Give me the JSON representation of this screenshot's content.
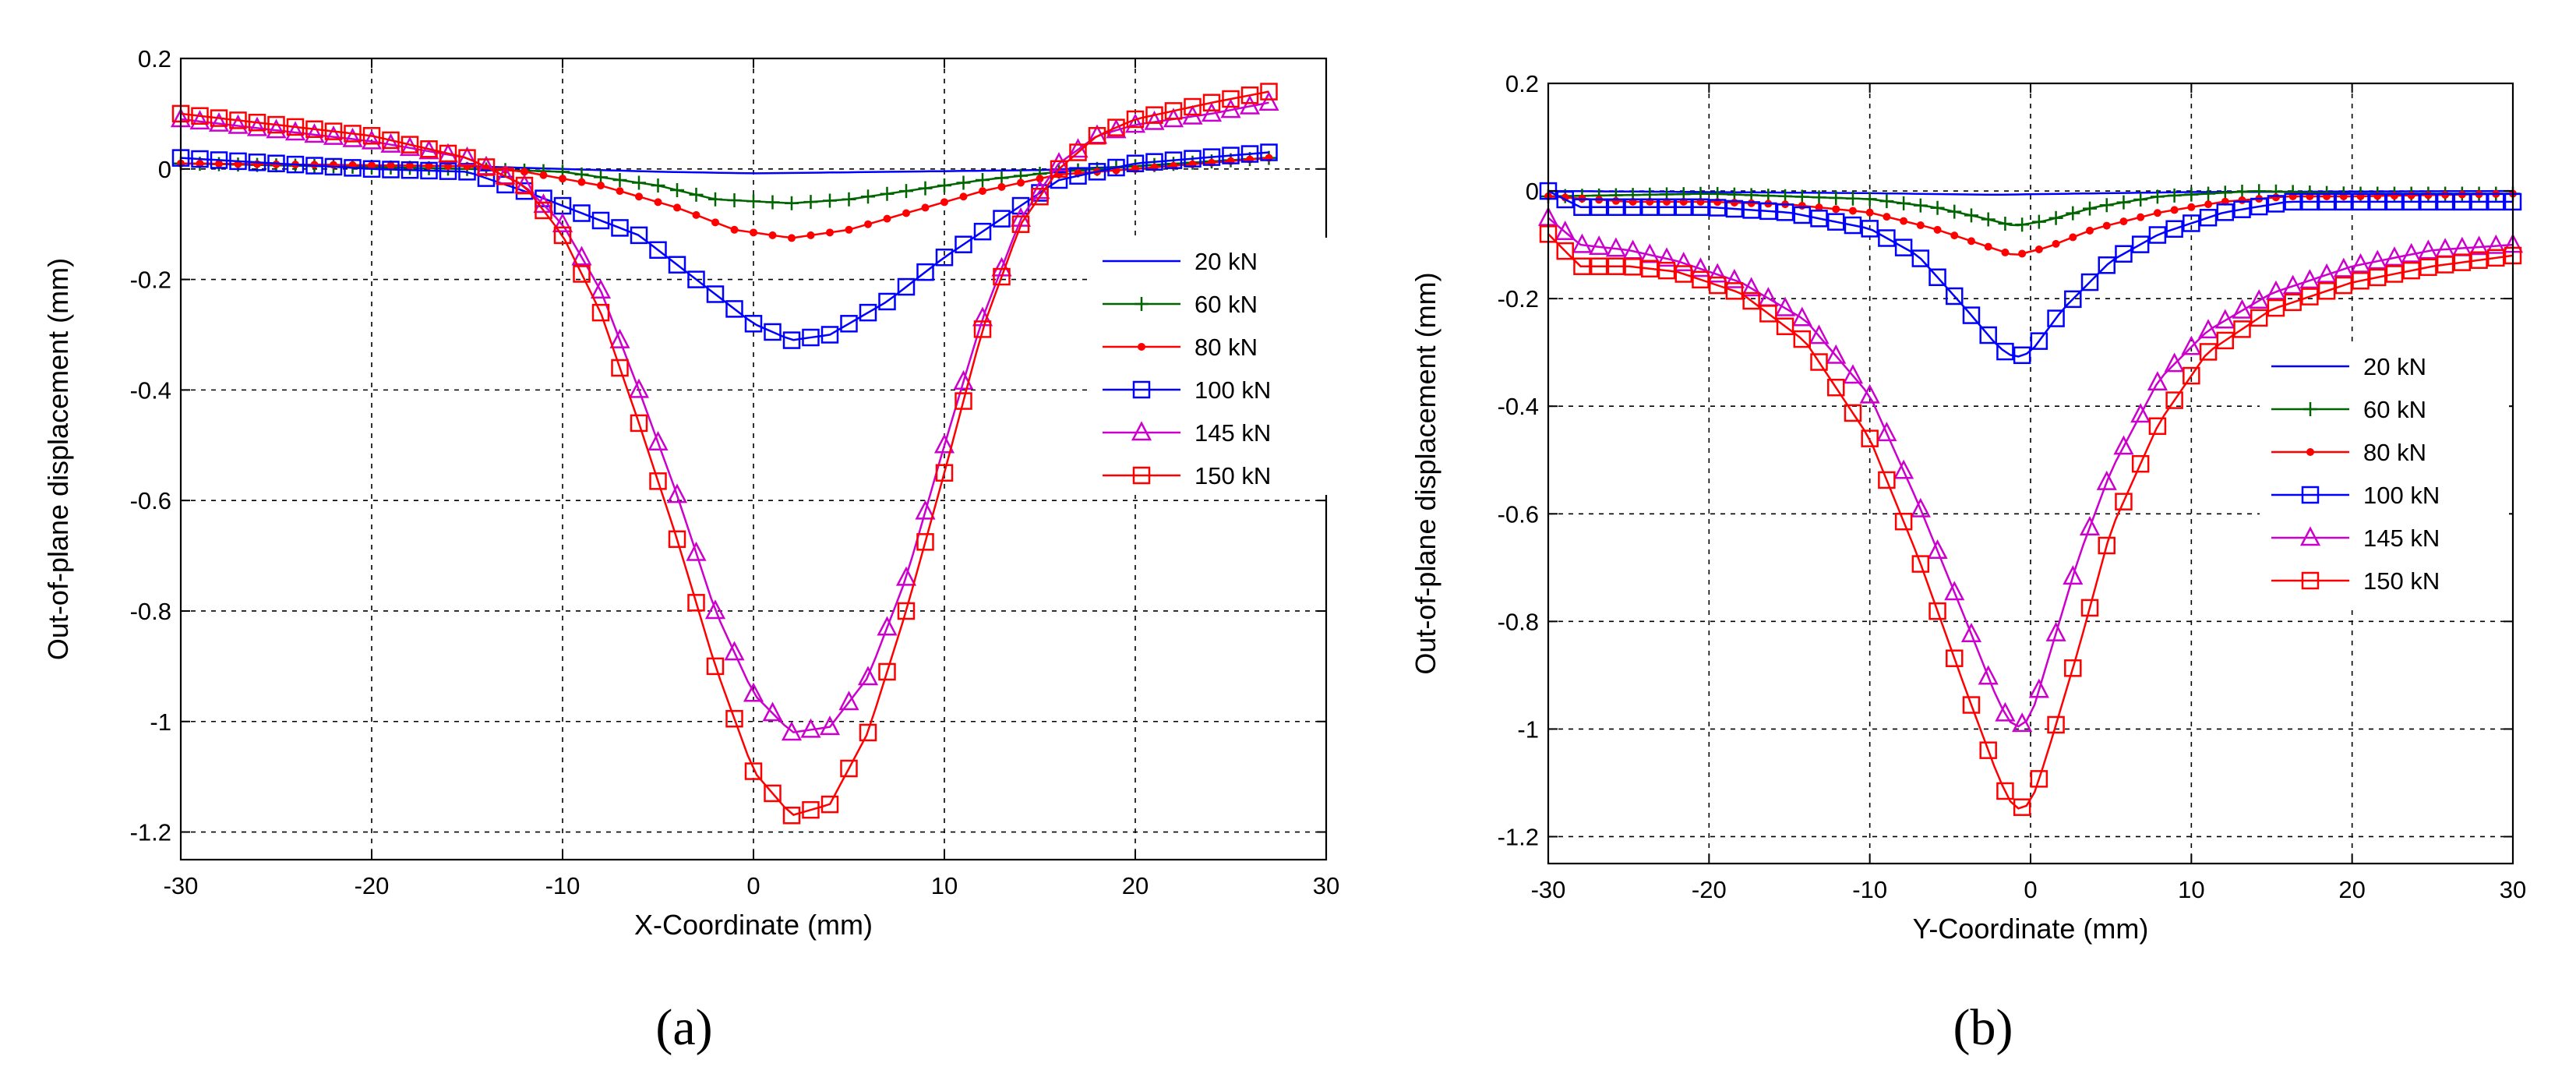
{
  "figure": {
    "panels": [
      "(a)",
      "(b)"
    ]
  },
  "chart_data": [
    {
      "type": "line",
      "panel_label": "(a)",
      "title": "",
      "xlabel": "X-Coordinate (mm)",
      "ylabel": "Out-of-plane displacement (mm)",
      "xlim": [
        -30,
        30
      ],
      "ylim": [
        -1.25,
        0.2
      ],
      "xticks": [
        -30,
        -20,
        -10,
        0,
        10,
        20,
        30
      ],
      "xtick_labels": [
        "-30",
        "-20",
        "-10",
        "0",
        "10",
        "20",
        "30"
      ],
      "yticks": [
        0.2,
        0,
        -0.2,
        -0.4,
        -0.6,
        -0.8,
        -1,
        -1.2
      ],
      "ytick_labels": [
        "0.2",
        "0",
        "-0.2",
        "-0.4",
        "-0.6",
        "-0.8",
        "-1",
        "-1.2"
      ],
      "grid": true,
      "legend_position": "right",
      "x_range": [
        -30,
        27
      ],
      "series": [
        {
          "name": "20 kN",
          "color": "#0000ff",
          "marker": "none",
          "x": [
            -30,
            -15,
            -10,
            -5,
            0,
            5,
            10,
            15,
            20,
            27
          ],
          "y": [
            0.01,
            0.005,
            0.0,
            -0.005,
            -0.008,
            -0.006,
            -0.004,
            -0.002,
            0.005,
            0.02
          ]
        },
        {
          "name": "60 kN",
          "color": "#006400",
          "marker": "plus",
          "x": [
            -30,
            -15,
            -10,
            -5,
            -2,
            2,
            5,
            8,
            12,
            16,
            20,
            27
          ],
          "y": [
            0.01,
            0.0,
            -0.005,
            -0.03,
            -0.055,
            -0.062,
            -0.055,
            -0.04,
            -0.02,
            -0.005,
            0.005,
            0.02
          ]
        },
        {
          "name": "80 kN",
          "color": "#ff0000",
          "marker": "star",
          "x": [
            -30,
            -15,
            -12,
            -8,
            -4,
            -1,
            2,
            5,
            8,
            12,
            16,
            20,
            27
          ],
          "y": [
            0.01,
            0.005,
            -0.005,
            -0.03,
            -0.07,
            -0.11,
            -0.125,
            -0.11,
            -0.08,
            -0.04,
            -0.01,
            0.0,
            0.02
          ]
        },
        {
          "name": "100 kN",
          "color": "#0000ff",
          "marker": "square",
          "x": [
            -30,
            -20,
            -15,
            -12,
            -9,
            -6,
            -3,
            0,
            2,
            4,
            7,
            10,
            13,
            16,
            20,
            27
          ],
          "y": [
            0.02,
            0.0,
            -0.005,
            -0.04,
            -0.08,
            -0.12,
            -0.2,
            -0.28,
            -0.31,
            -0.3,
            -0.24,
            -0.16,
            -0.09,
            -0.02,
            0.01,
            0.03
          ]
        },
        {
          "name": "145 kN",
          "color": "#cc00cc",
          "marker": "triangle",
          "x": [
            -30,
            -25,
            -20,
            -15,
            -12,
            -10,
            -8,
            -6,
            -4,
            -2,
            0,
            2,
            4,
            6,
            8,
            10,
            12,
            14,
            16,
            18,
            20,
            24,
            27
          ],
          "y": [
            0.09,
            0.07,
            0.05,
            0.02,
            -0.03,
            -0.1,
            -0.22,
            -0.4,
            -0.59,
            -0.8,
            -0.95,
            -1.02,
            -1.01,
            -0.92,
            -0.74,
            -0.5,
            -0.27,
            -0.09,
            0.01,
            0.06,
            0.08,
            0.1,
            0.12
          ]
        },
        {
          "name": "150 kN",
          "color": "#ff0000",
          "marker": "square",
          "x": [
            -30,
            -25,
            -20,
            -15,
            -12,
            -10,
            -8,
            -6,
            -4,
            -2,
            0,
            2,
            4,
            6,
            8,
            10,
            12,
            14,
            16,
            18,
            20,
            24,
            27
          ],
          "y": [
            0.1,
            0.08,
            0.06,
            0.02,
            -0.03,
            -0.12,
            -0.26,
            -0.46,
            -0.67,
            -0.9,
            -1.09,
            -1.17,
            -1.15,
            -1.02,
            -0.8,
            -0.55,
            -0.29,
            -0.1,
            0.0,
            0.06,
            0.09,
            0.12,
            0.14
          ]
        }
      ]
    },
    {
      "type": "line",
      "panel_label": "(b)",
      "title": "",
      "xlabel": "Y-Coordinate (mm)",
      "ylabel": "Out-of-plane displacement (mm)",
      "xlim": [
        -30,
        30
      ],
      "ylim": [
        -1.25,
        0.2
      ],
      "xticks": [
        -30,
        -20,
        -10,
        0,
        10,
        20,
        30
      ],
      "xtick_labels": [
        "-30",
        "-20",
        "-10",
        "0",
        "10",
        "20",
        "30"
      ],
      "yticks": [
        0.2,
        0,
        -0.2,
        -0.4,
        -0.6,
        -0.8,
        -1,
        -1.2
      ],
      "ytick_labels": [
        "0.2",
        "0",
        "-0.2",
        "-0.4",
        "-0.6",
        "-0.8",
        "-1",
        "-1.2"
      ],
      "grid": true,
      "legend_position": "right",
      "x_range": [
        -30,
        30
      ],
      "series": [
        {
          "name": "20 kN",
          "color": "#0000ff",
          "marker": "none",
          "x": [
            -30,
            -20,
            -10,
            -5,
            -2,
            0,
            5,
            10,
            20,
            30
          ],
          "y": [
            0.0,
            -0.002,
            -0.004,
            -0.006,
            -0.007,
            -0.006,
            -0.004,
            -0.002,
            -0.001,
            0.0
          ]
        },
        {
          "name": "60 kN",
          "color": "#006400",
          "marker": "plus",
          "x": [
            -30,
            -20,
            -10,
            -6,
            -3,
            -1,
            1,
            4,
            8,
            14,
            20,
            30
          ],
          "y": [
            -0.01,
            -0.005,
            -0.015,
            -0.03,
            -0.05,
            -0.065,
            -0.055,
            -0.03,
            -0.01,
            0.0,
            -0.005,
            -0.005
          ]
        },
        {
          "name": "80 kN",
          "color": "#ff0000",
          "marker": "star",
          "x": [
            -30,
            -25,
            -20,
            -15,
            -10,
            -6,
            -3,
            -1,
            1,
            4,
            8,
            12,
            16,
            20,
            30
          ],
          "y": [
            -0.01,
            -0.02,
            -0.02,
            -0.025,
            -0.04,
            -0.07,
            -0.1,
            -0.12,
            -0.105,
            -0.07,
            -0.04,
            -0.02,
            -0.01,
            -0.01,
            -0.005
          ]
        },
        {
          "name": "100 kN",
          "color": "#0000ff",
          "marker": "square",
          "x": [
            -30,
            -28,
            -25,
            -20,
            -15,
            -10,
            -7,
            -4,
            -2,
            -1,
            0,
            2,
            5,
            8,
            12,
            16,
            20,
            25,
            30
          ],
          "y": [
            0.0,
            -0.03,
            -0.03,
            -0.03,
            -0.04,
            -0.07,
            -0.12,
            -0.22,
            -0.29,
            -0.31,
            -0.3,
            -0.22,
            -0.13,
            -0.08,
            -0.04,
            -0.02,
            -0.02,
            -0.02,
            -0.02
          ]
        },
        {
          "name": "145 kN",
          "color": "#cc00cc",
          "marker": "triangle",
          "x": [
            -30,
            -28,
            -25,
            -22,
            -18,
            -14,
            -10,
            -7,
            -4,
            -2,
            -1,
            0,
            1,
            3,
            5,
            8,
            11,
            15,
            20,
            25,
            30
          ],
          "y": [
            -0.05,
            -0.1,
            -0.11,
            -0.13,
            -0.17,
            -0.24,
            -0.38,
            -0.58,
            -0.8,
            -0.95,
            -1.0,
            -0.98,
            -0.88,
            -0.68,
            -0.52,
            -0.35,
            -0.26,
            -0.19,
            -0.14,
            -0.11,
            -0.1
          ]
        },
        {
          "name": "150 kN",
          "color": "#ff0000",
          "marker": "square",
          "x": [
            -30,
            -28,
            -25,
            -22,
            -18,
            -14,
            -10,
            -7,
            -4,
            -2,
            -1,
            0,
            1,
            3,
            5,
            8,
            11,
            15,
            20,
            25,
            30
          ],
          "y": [
            -0.08,
            -0.14,
            -0.14,
            -0.15,
            -0.19,
            -0.28,
            -0.46,
            -0.68,
            -0.93,
            -1.09,
            -1.15,
            -1.14,
            -1.05,
            -0.85,
            -0.63,
            -0.43,
            -0.3,
            -0.22,
            -0.17,
            -0.14,
            -0.12
          ]
        }
      ]
    }
  ]
}
